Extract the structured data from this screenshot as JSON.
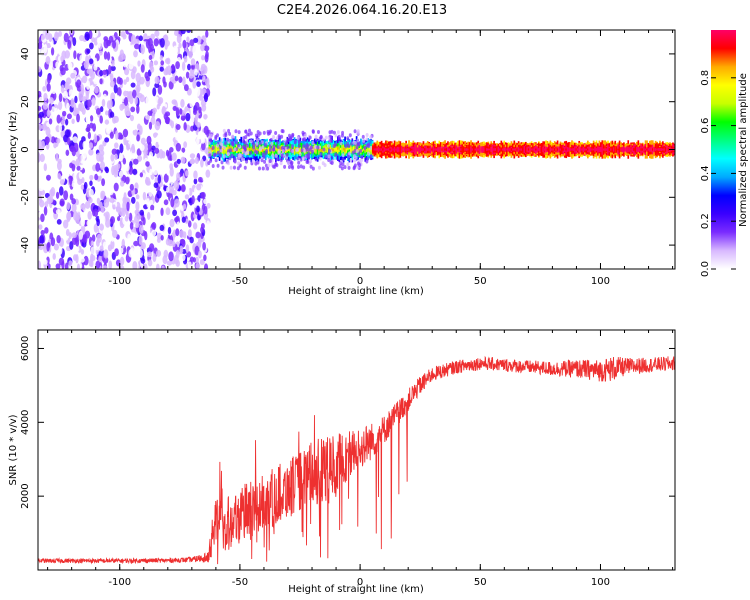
{
  "title": "C2E4.2026.064.16.20.E13",
  "colors": {
    "snr_line": "#ee3030",
    "frame": "#000000",
    "background": "#ffffff"
  },
  "chart_data": [
    {
      "type": "heatmap",
      "name": "spectrogram",
      "xlabel": "Height of straight line (km)",
      "ylabel": "Frequency (Hz)",
      "xlim": [
        -134,
        131
      ],
      "ylim": [
        -50,
        50
      ],
      "x_ticks": [
        -100,
        -50,
        0,
        50,
        100
      ],
      "y_ticks": [
        -40,
        -20,
        0,
        20,
        40
      ],
      "x_tick_labels": [
        "-100",
        "-50",
        "0",
        "50",
        "100"
      ],
      "y_tick_labels": [
        "-40",
        "-20",
        "0",
        "20",
        "40"
      ],
      "colorbar": {
        "label": "Normalized spectral amplitude",
        "range": [
          0,
          1
        ],
        "ticks": [
          0.0,
          0.2,
          0.4,
          0.6,
          0.8
        ],
        "tick_labels": [
          "0.0",
          "0.2",
          "0.4",
          "0.6",
          "0.8"
        ],
        "colormap": [
          "#ffffff",
          "#d8b8ff",
          "#7a2cff",
          "#3a00ff",
          "#0000ff",
          "#00aaff",
          "#00ffff",
          "#00ff80",
          "#00ff00",
          "#c8ff00",
          "#ffff00",
          "#ffaa00",
          "#ff0000",
          "#ff0066"
        ]
      },
      "regions": [
        {
          "description": "diffuse noise",
          "x_range": [
            -134,
            -63
          ],
          "freq_range": [
            -50,
            50
          ],
          "amplitude": [
            0.0,
            0.2
          ]
        },
        {
          "description": "signal onset",
          "x_range": [
            -63,
            5
          ],
          "center_freq": 0,
          "half_width": 4,
          "amplitude": [
            0.3,
            0.8
          ]
        },
        {
          "description": "narrow carrier",
          "x_range": [
            5,
            131
          ],
          "center_freq": 0,
          "half_width": 3,
          "amplitude": [
            0.85,
            1.0
          ]
        }
      ]
    },
    {
      "type": "line",
      "name": "snr",
      "xlabel": "Height of straight line (km)",
      "ylabel": "SNR (10 * v/v)",
      "xlim": [
        -134,
        131
      ],
      "ylim": [
        0,
        6500
      ],
      "x_ticks": [
        -100,
        -50,
        0,
        50,
        100
      ],
      "y_ticks": [
        2000,
        4000,
        6000
      ],
      "x_tick_labels": [
        "-100",
        "-50",
        "0",
        "50",
        "100"
      ],
      "y_tick_labels": [
        "2000",
        "4000",
        "6000"
      ],
      "series": [
        {
          "name": "SNR",
          "x": [
            -134,
            -120,
            -100,
            -80,
            -70,
            -63,
            -60,
            -55,
            -50,
            -45,
            -40,
            -35,
            -30,
            -25,
            -20,
            -15,
            -10,
            -5,
            0,
            5,
            10,
            15,
            20,
            25,
            30,
            40,
            50,
            60,
            70,
            80,
            90,
            100,
            105,
            110,
            120,
            131
          ],
          "values": [
            250,
            250,
            250,
            260,
            280,
            350,
            1500,
            1300,
            1500,
            1600,
            1800,
            2000,
            2200,
            2400,
            2600,
            2700,
            2900,
            3100,
            3300,
            3500,
            3800,
            4200,
            4600,
            5000,
            5300,
            5500,
            5600,
            5550,
            5500,
            5450,
            5450,
            5400,
            5450,
            5500,
            5550,
            5600
          ],
          "noise_amplitude": [
            60,
            60,
            60,
            60,
            70,
            150,
            900,
            800,
            800,
            800,
            800,
            800,
            800,
            800,
            900,
            900,
            800,
            700,
            600,
            500,
            400,
            350,
            300,
            250,
            200,
            180,
            180,
            180,
            180,
            200,
            250,
            300,
            350,
            250,
            200,
            200
          ]
        }
      ]
    }
  ]
}
